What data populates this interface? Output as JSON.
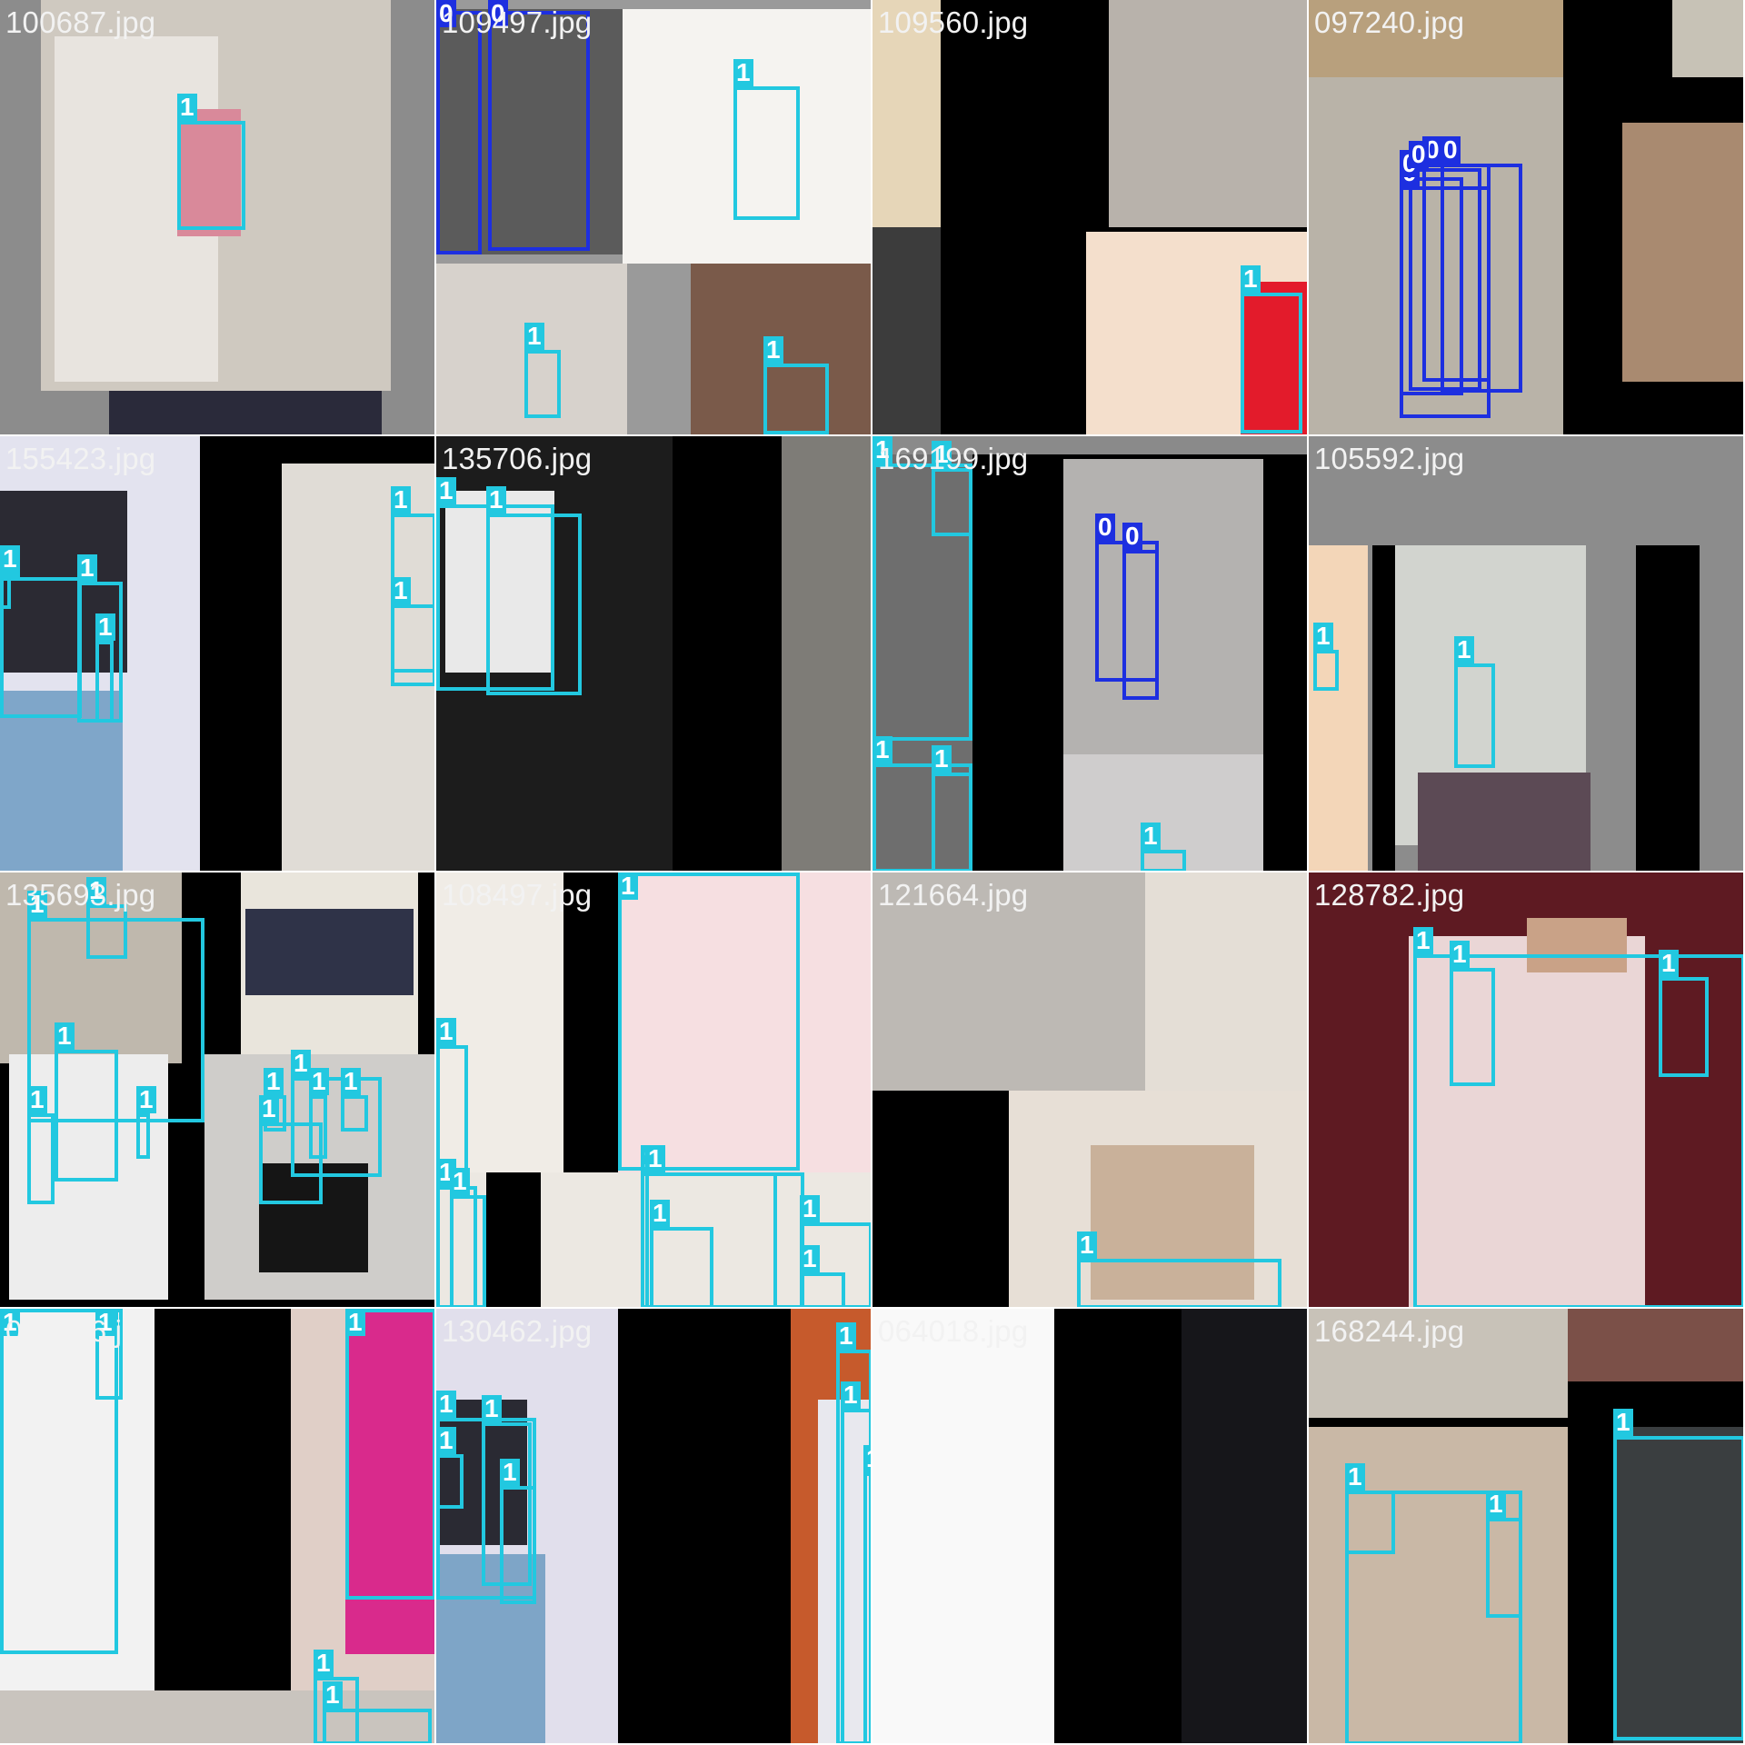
{
  "classes": [
    {
      "id": "0",
      "color": "#1d2fe0"
    },
    {
      "id": "1",
      "color": "#22c8e0"
    }
  ],
  "tiles": [
    {
      "file": "100687.jpg",
      "labels": [
        "1"
      ]
    },
    {
      "file": "109497.jpg",
      "labels": [
        "0",
        "0",
        "1",
        "1",
        "1"
      ]
    },
    {
      "file": "109560.jpg",
      "labels": [
        "1"
      ]
    },
    {
      "file": "097240.jpg",
      "labels": [
        "0",
        "0",
        "0",
        "0",
        "0"
      ]
    },
    {
      "file": "155423.jpg",
      "labels": [
        "1",
        "1",
        "1",
        "1",
        "1",
        "1"
      ]
    },
    {
      "file": "135706.jpg",
      "labels": [
        "1",
        "1"
      ]
    },
    {
      "file": "169199.jpg",
      "labels": [
        "1",
        "1",
        "1",
        "1",
        "0",
        "0",
        "1"
      ]
    },
    {
      "file": "105592.jpg",
      "labels": [
        "1",
        "1"
      ]
    },
    {
      "file": "135693.jpg",
      "labels": [
        "1",
        "1",
        "1",
        "1",
        "1",
        "1",
        "1",
        "1",
        "1",
        "1"
      ]
    },
    {
      "file": "108497.jpg",
      "labels": [
        "1",
        "1",
        "1",
        "1",
        "1",
        "1",
        "1",
        "1",
        "1"
      ]
    },
    {
      "file": "121664.jpg",
      "labels": [
        "1"
      ]
    },
    {
      "file": "128782.jpg",
      "labels": [
        "1",
        "1",
        "1"
      ]
    },
    {
      "file": "047666.jpg",
      "labels": [
        "1",
        "1",
        "1",
        "1",
        "1"
      ]
    },
    {
      "file": "130462.jpg",
      "labels": [
        "1",
        "1",
        "1",
        "1",
        "1",
        "1",
        "1"
      ]
    },
    {
      "file": "064018.jpg",
      "labels": []
    },
    {
      "file": "168244.jpg",
      "labels": [
        "1",
        "1",
        "1",
        "1"
      ]
    }
  ]
}
